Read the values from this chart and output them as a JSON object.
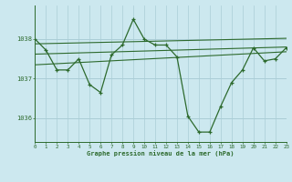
{
  "xlabel": "Graphe pression niveau de la mer (hPa)",
  "bg_color": "#cce8ef",
  "grid_color": "#aacdd6",
  "line_color": "#2d6a2d",
  "x_min": 0,
  "x_max": 23,
  "y_min": 1035.4,
  "y_max": 1038.85,
  "yticks": [
    1036,
    1037,
    1038
  ],
  "xticks": [
    0,
    1,
    2,
    3,
    4,
    5,
    6,
    7,
    8,
    9,
    10,
    11,
    12,
    13,
    14,
    15,
    16,
    17,
    18,
    19,
    20,
    21,
    22,
    23
  ],
  "main_series": [
    [
      0,
      1038.0
    ],
    [
      1,
      1037.72
    ],
    [
      2,
      1037.22
    ],
    [
      3,
      1037.22
    ],
    [
      4,
      1037.5
    ],
    [
      5,
      1036.85
    ],
    [
      6,
      1036.65
    ],
    [
      7,
      1037.6
    ],
    [
      8,
      1037.85
    ],
    [
      9,
      1038.5
    ],
    [
      10,
      1038.0
    ],
    [
      11,
      1037.85
    ],
    [
      12,
      1037.85
    ],
    [
      13,
      1037.55
    ],
    [
      14,
      1036.05
    ],
    [
      15,
      1035.65
    ],
    [
      16,
      1035.65
    ],
    [
      17,
      1036.3
    ],
    [
      18,
      1036.9
    ],
    [
      19,
      1037.22
    ],
    [
      20,
      1037.78
    ],
    [
      21,
      1037.45
    ],
    [
      22,
      1037.5
    ],
    [
      23,
      1037.78
    ]
  ],
  "trend_lines": [
    [
      [
        0,
        1037.88
      ],
      [
        23,
        1038.02
      ]
    ],
    [
      [
        0,
        1037.62
      ],
      [
        23,
        1037.8
      ]
    ],
    [
      [
        0,
        1037.35
      ],
      [
        23,
        1037.68
      ]
    ]
  ]
}
